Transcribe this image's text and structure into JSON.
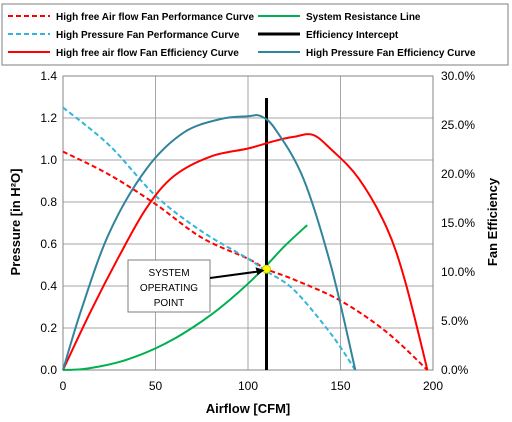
{
  "chart_data": {
    "type": "line",
    "title": "",
    "xlabel": "Airflow [CFM]",
    "ylabel": "Pressure [in H²O]",
    "y2label": "Fan Efficiency",
    "xlim": [
      0,
      200
    ],
    "ylim": [
      0,
      1.4
    ],
    "y2lim": [
      0,
      30
    ],
    "x_ticks": [
      "0",
      "50",
      "100",
      "150",
      "200"
    ],
    "y_ticks": [
      "0.0",
      "0.2",
      "0.4",
      "0.6",
      "0.8",
      "1.0",
      "1.2",
      "1.4"
    ],
    "y2_ticks": [
      "0.0%",
      "5.0%",
      "10.0%",
      "15.0%",
      "20.0%",
      "25.0%",
      "30.0%"
    ],
    "grid": true,
    "legend_position": "top",
    "legend": [
      "High free Air flow Fan Performance Curve",
      "System Resistance Line",
      "High Pressure Fan Performance Curve",
      "Efficiency Intercept",
      "High free air flow Fan Efficiency Curve",
      "High Pressure Fan Efficiency Curve"
    ],
    "series": [
      {
        "name": "High free Air flow Fan Performance Curve",
        "axis": "left",
        "color": "#ff0000",
        "dash": true,
        "points": [
          [
            0,
            1.04
          ],
          [
            25,
            0.93
          ],
          [
            50,
            0.79
          ],
          [
            75,
            0.63
          ],
          [
            100,
            0.53
          ],
          [
            110,
            0.48
          ],
          [
            125,
            0.43
          ],
          [
            150,
            0.33
          ],
          [
            175,
            0.18
          ],
          [
            197,
            0.0
          ]
        ]
      },
      {
        "name": "System Resistance Line",
        "axis": "left",
        "color": "#00b050",
        "dash": false,
        "points": [
          [
            0,
            0.0
          ],
          [
            10,
            0.004
          ],
          [
            20,
            0.017
          ],
          [
            30,
            0.037
          ],
          [
            40,
            0.066
          ],
          [
            50,
            0.103
          ],
          [
            60,
            0.148
          ],
          [
            70,
            0.202
          ],
          [
            80,
            0.263
          ],
          [
            90,
            0.333
          ],
          [
            100,
            0.411
          ],
          [
            110,
            0.498
          ],
          [
            120,
            0.592
          ],
          [
            132,
            0.69
          ]
        ]
      },
      {
        "name": "High Pressure Fan Performance Curve",
        "axis": "left",
        "color": "#31b6d8",
        "dash": true,
        "points": [
          [
            0,
            1.25
          ],
          [
            25,
            1.07
          ],
          [
            50,
            0.83
          ],
          [
            75,
            0.66
          ],
          [
            100,
            0.53
          ],
          [
            110,
            0.47
          ],
          [
            125,
            0.38
          ],
          [
            145,
            0.17
          ],
          [
            158,
            0.0
          ]
        ]
      },
      {
        "name": "Efficiency Intercept",
        "axis": "left",
        "color": "#000000",
        "dash": false,
        "points": [
          [
            110,
            0.0
          ],
          [
            110,
            1.17
          ]
        ]
      },
      {
        "name": "High free air flow Fan Efficiency Curve",
        "axis": "right",
        "color": "#ff0000",
        "dash": false,
        "points": [
          [
            0,
            0.0
          ],
          [
            15,
            6.0
          ],
          [
            30,
            11.5
          ],
          [
            45,
            16.5
          ],
          [
            60,
            19.8
          ],
          [
            80,
            21.8
          ],
          [
            100,
            22.6
          ],
          [
            115,
            23.4
          ],
          [
            125,
            23.8
          ],
          [
            135,
            24.0
          ],
          [
            145,
            22.5
          ],
          [
            160,
            19.5
          ],
          [
            175,
            14.5
          ],
          [
            185,
            9.0
          ],
          [
            197,
            0.0
          ]
        ]
      },
      {
        "name": "High Pressure Fan Efficiency Curve",
        "axis": "right",
        "color": "#31849b",
        "dash": false,
        "points": [
          [
            0,
            0.0
          ],
          [
            10,
            6.2
          ],
          [
            25,
            14.0
          ],
          [
            45,
            20.5
          ],
          [
            65,
            24.2
          ],
          [
            85,
            25.6
          ],
          [
            100,
            25.9
          ],
          [
            107,
            25.9
          ],
          [
            115,
            24.5
          ],
          [
            130,
            19.5
          ],
          [
            145,
            10.5
          ],
          [
            158,
            0.0
          ]
        ]
      }
    ],
    "annotation": {
      "lines": [
        "SYSTEM",
        "OPERATING",
        "POINT"
      ],
      "target": [
        110,
        0.48
      ]
    }
  }
}
